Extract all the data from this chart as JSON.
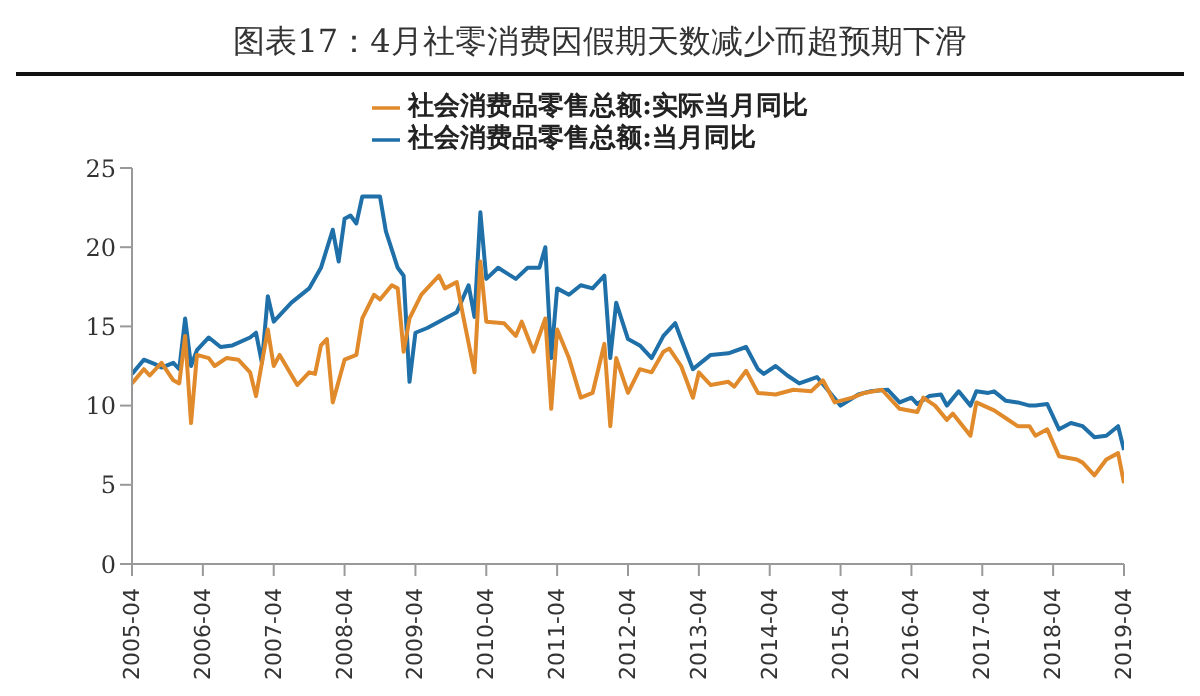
{
  "chart_data": {
    "type": "line",
    "title": "图表17：4月社零消费因假期天数减少而超预期下滑",
    "series": [
      {
        "name": "社会消费品零售总额:当月同比",
        "color": "#1f6fa8",
        "x": [
          "2005-04",
          "2005-06",
          "2005-08",
          "2005-09",
          "2005-11",
          "2005-12",
          "2006-01",
          "2006-02",
          "2006-03",
          "2006-05",
          "2006-07",
          "2006-09",
          "2006-12",
          "2007-01",
          "2007-02",
          "2007-03",
          "2007-04",
          "2007-07",
          "2007-10",
          "2007-12",
          "2008-02",
          "2008-03",
          "2008-04",
          "2008-05",
          "2008-06",
          "2008-07",
          "2008-10",
          "2008-11",
          "2009-01",
          "2009-02",
          "2009-03",
          "2009-04",
          "2009-06",
          "2009-09",
          "2009-11",
          "2010-01",
          "2010-02",
          "2010-03",
          "2010-04",
          "2010-06",
          "2010-09",
          "2010-11",
          "2011-01",
          "2011-02",
          "2011-03",
          "2011-04",
          "2011-06",
          "2011-08",
          "2011-10",
          "2011-12",
          "2012-01",
          "2012-02",
          "2012-04",
          "2012-06",
          "2012-08",
          "2012-10",
          "2012-12",
          "2013-01",
          "2013-03",
          "2013-06",
          "2013-09",
          "2013-12",
          "2014-02",
          "2014-03",
          "2014-05",
          "2014-07",
          "2014-09",
          "2014-12",
          "2015-02",
          "2015-04",
          "2015-07",
          "2015-09",
          "2015-12",
          "2016-02",
          "2016-04",
          "2016-05",
          "2016-07",
          "2016-09",
          "2016-10",
          "2016-12",
          "2017-02",
          "2017-03",
          "2017-05",
          "2017-06",
          "2017-08",
          "2017-10",
          "2017-12",
          "2018-01",
          "2018-03",
          "2018-05",
          "2018-07",
          "2018-09",
          "2018-11",
          "2019-01",
          "2019-03",
          "2019-04"
        ],
        "values": [
          12.0,
          12.9,
          12.6,
          12.4,
          12.7,
          12.3,
          15.5,
          12.5,
          13.5,
          14.3,
          13.7,
          13.8,
          14.3,
          14.6,
          12.7,
          16.9,
          15.3,
          16.5,
          17.4,
          18.7,
          21.1,
          19.1,
          21.8,
          22.0,
          21.5,
          23.2,
          23.2,
          21.0,
          18.7,
          18.2,
          11.5,
          14.6,
          14.9,
          15.5,
          15.9,
          17.6,
          15.6,
          22.2,
          18.0,
          18.7,
          18.0,
          18.7,
          18.7,
          20.0,
          13.0,
          17.4,
          17.0,
          17.6,
          17.4,
          18.2,
          13.0,
          16.5,
          14.2,
          13.8,
          13.0,
          14.4,
          15.2,
          14.2,
          12.3,
          13.2,
          13.3,
          13.7,
          12.3,
          12.0,
          12.5,
          11.9,
          11.4,
          11.8,
          10.9,
          10.0,
          10.7,
          10.9,
          11.0,
          10.2,
          10.5,
          10.1,
          10.6,
          10.7,
          10.0,
          10.9,
          10.0,
          10.9,
          10.8,
          10.9,
          10.3,
          10.2,
          10.0,
          10.0,
          10.1,
          8.5,
          8.9,
          8.7,
          8.0,
          8.1,
          8.7,
          7.2
        ]
      },
      {
        "name": "社会消费品零售总额:实际当月同比",
        "color": "#e08a2c",
        "x": [
          "2005-04",
          "2005-06",
          "2005-07",
          "2005-09",
          "2005-11",
          "2005-12",
          "2006-01",
          "2006-02",
          "2006-03",
          "2006-05",
          "2006-06",
          "2006-08",
          "2006-10",
          "2006-12",
          "2007-01",
          "2007-03",
          "2007-04",
          "2007-05",
          "2007-08",
          "2007-10",
          "2007-11",
          "2007-12",
          "2008-01",
          "2008-02",
          "2008-04",
          "2008-06",
          "2008-07",
          "2008-09",
          "2008-10",
          "2008-12",
          "2009-01",
          "2009-02",
          "2009-03",
          "2009-05",
          "2009-08",
          "2009-09",
          "2009-11",
          "2009-12",
          "2010-02",
          "2010-03",
          "2010-04",
          "2010-07",
          "2010-09",
          "2010-10",
          "2010-12",
          "2011-02",
          "2011-03",
          "2011-04",
          "2011-06",
          "2011-08",
          "2011-10",
          "2011-12",
          "2012-01",
          "2012-02",
          "2012-04",
          "2012-06",
          "2012-08",
          "2012-10",
          "2012-11",
          "2013-01",
          "2013-03",
          "2013-04",
          "2013-06",
          "2013-09",
          "2013-10",
          "2013-12",
          "2014-02",
          "2014-05",
          "2014-08",
          "2014-11",
          "2015-01",
          "2015-03",
          "2015-06",
          "2015-08",
          "2015-11",
          "2016-02",
          "2016-05",
          "2016-06",
          "2016-08",
          "2016-10",
          "2016-11",
          "2017-02",
          "2017-03",
          "2017-06",
          "2017-08",
          "2017-10",
          "2017-12",
          "2018-01",
          "2018-03",
          "2018-05",
          "2018-08",
          "2018-09",
          "2018-11",
          "2019-01",
          "2019-03",
          "2019-04"
        ],
        "values": [
          11.4,
          12.3,
          11.9,
          12.7,
          11.6,
          11.4,
          14.4,
          8.9,
          13.2,
          13.0,
          12.5,
          13.0,
          12.9,
          12.1,
          10.6,
          14.8,
          12.5,
          13.2,
          11.3,
          12.1,
          12.0,
          13.8,
          14.2,
          10.2,
          12.9,
          13.2,
          15.5,
          17.0,
          16.7,
          17.6,
          17.4,
          13.4,
          15.5,
          17.0,
          18.2,
          17.4,
          17.8,
          15.8,
          12.1,
          19.1,
          15.3,
          15.2,
          14.4,
          15.3,
          13.4,
          15.5,
          9.8,
          14.8,
          13.0,
          10.5,
          10.8,
          13.9,
          8.7,
          13.0,
          10.8,
          12.3,
          12.1,
          13.4,
          13.6,
          12.5,
          10.5,
          12.1,
          11.3,
          11.5,
          11.2,
          12.2,
          10.8,
          10.7,
          11.0,
          10.9,
          11.6,
          10.2,
          10.5,
          10.8,
          11.0,
          9.8,
          9.6,
          10.5,
          10.0,
          9.1,
          9.5,
          8.1,
          10.2,
          9.7,
          9.2,
          8.7,
          8.7,
          8.1,
          8.5,
          6.8,
          6.6,
          6.4,
          5.6,
          6.6,
          7.0,
          5.1
        ]
      }
    ],
    "xlim": [
      "2005-04",
      "2019-04"
    ],
    "xticks": [
      "2005-04",
      "2006-04",
      "2007-04",
      "2008-04",
      "2009-04",
      "2010-04",
      "2011-04",
      "2012-04",
      "2013-04",
      "2014-04",
      "2015-04",
      "2016-04",
      "2017-04",
      "2018-04",
      "2019-04"
    ],
    "ylim": [
      0,
      25
    ],
    "yticks": [
      0,
      5,
      10,
      15,
      20,
      25
    ],
    "grid": false,
    "legend": "top",
    "marker": "none",
    "line_style": "solid"
  }
}
